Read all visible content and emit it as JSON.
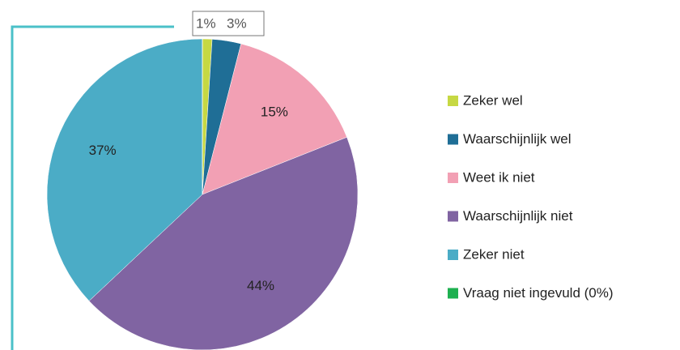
{
  "chart_data": {
    "type": "pie",
    "categories": [
      "Zeker wel",
      "Waarschijnlijk wel",
      "Weet ik niet",
      "Waarschijnlijk niet",
      "Zeker niet",
      "Vraag niet ingevuld (0%)"
    ],
    "values": [
      1,
      3,
      15,
      44,
      37,
      0
    ],
    "value_labels": [
      "1%",
      "3%",
      "15%",
      "44%",
      "37%",
      null
    ],
    "colors": [
      "#c6d843",
      "#1f6e96",
      "#f2a0b4",
      "#8064a2",
      "#4bacc6",
      "#1eb050"
    ],
    "legend": "right"
  }
}
